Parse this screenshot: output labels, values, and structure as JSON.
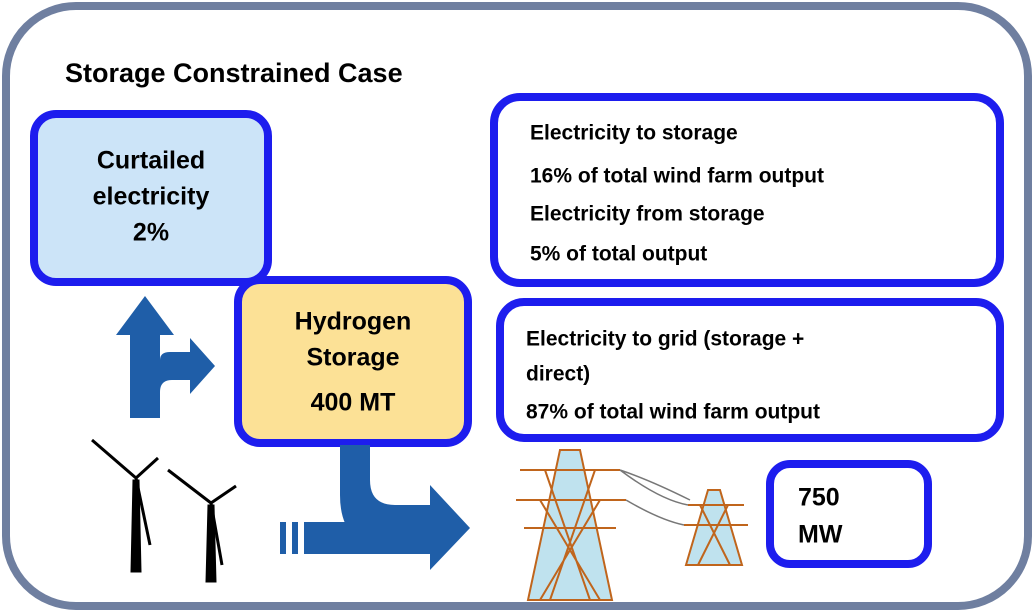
{
  "title": "Storage Constrained Case",
  "curtailed": {
    "lines": [
      "Curtailed",
      "electricity",
      "2%"
    ]
  },
  "storage": {
    "lines": [
      "Hydrogen",
      "Storage",
      "400 MT"
    ]
  },
  "storage_flows": {
    "lines": [
      "Electricity to storage",
      "16% of total wind farm output",
      "Electricity from storage",
      "5% of total output"
    ]
  },
  "grid": {
    "lines": [
      "Electricity to grid (storage +",
      "direct)",
      "87% of total wind farm output"
    ]
  },
  "capacity": {
    "lines": [
      "750",
      "MW"
    ]
  }
}
